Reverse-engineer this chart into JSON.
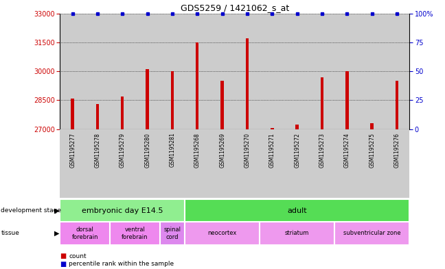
{
  "title": "GDS5259 / 1421062_s_at",
  "samples": [
    "GSM1195277",
    "GSM1195278",
    "GSM1195279",
    "GSM1195280",
    "GSM1195281",
    "GSM1195268",
    "GSM1195269",
    "GSM1195270",
    "GSM1195271",
    "GSM1195272",
    "GSM1195273",
    "GSM1195274",
    "GSM1195275",
    "GSM1195276"
  ],
  "counts": [
    28600,
    28300,
    28700,
    30100,
    30000,
    31500,
    29500,
    31700,
    27050,
    27250,
    29700,
    30000,
    27300,
    29500
  ],
  "percentiles": [
    100,
    100,
    100,
    100,
    100,
    100,
    100,
    100,
    100,
    100,
    100,
    100,
    100,
    100
  ],
  "ylim_left": [
    27000,
    33000
  ],
  "ylim_right": [
    0,
    100
  ],
  "yticks_left": [
    27000,
    28500,
    30000,
    31500,
    33000
  ],
  "yticks_right": [
    0,
    25,
    50,
    75,
    100
  ],
  "bar_color": "#cc0000",
  "percentile_color": "#0000cc",
  "development_stages": [
    {
      "label": "embryonic day E14.5",
      "start": 0,
      "end": 4,
      "color": "#90ee90"
    },
    {
      "label": "adult",
      "start": 5,
      "end": 13,
      "color": "#55dd55"
    }
  ],
  "tissues": [
    {
      "label": "dorsal\nforebrain",
      "start": 0,
      "end": 1,
      "color": "#ee88ee"
    },
    {
      "label": "ventral\nforebrain",
      "start": 2,
      "end": 3,
      "color": "#ee88ee"
    },
    {
      "label": "spinal\ncord",
      "start": 4,
      "end": 4,
      "color": "#dd88ee"
    },
    {
      "label": "neocortex",
      "start": 5,
      "end": 7,
      "color": "#ee99ee"
    },
    {
      "label": "striatum",
      "start": 8,
      "end": 10,
      "color": "#ee99ee"
    },
    {
      "label": "subventricular zone",
      "start": 11,
      "end": 13,
      "color": "#ee99ee"
    }
  ]
}
